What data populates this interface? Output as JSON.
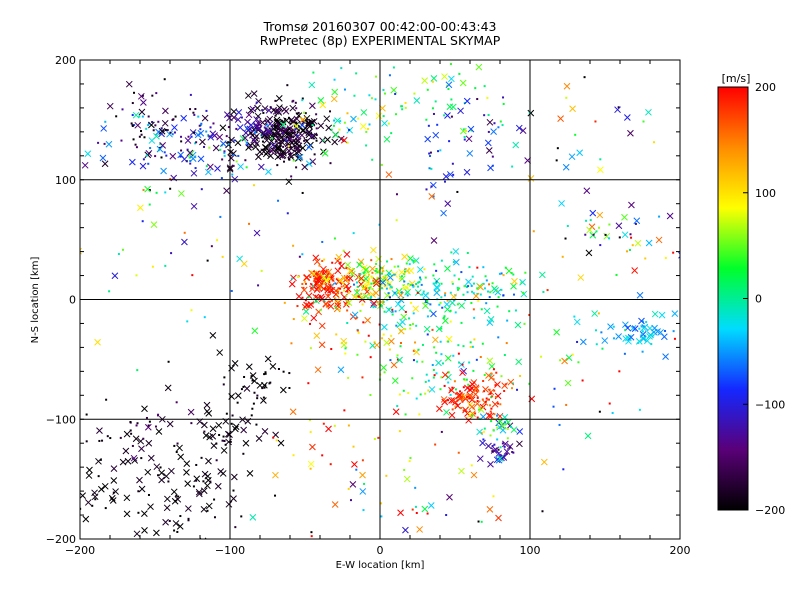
{
  "chart_data": {
    "type": "scatter",
    "title": "Tromsø 20160307 00:42:00-00:43:43",
    "subtitle": "RwPretec (8p) EXPERIMENTAL SKYMAP",
    "xlabel": "E-W location [km]",
    "ylabel": "N-S location [km]",
    "xlim": [
      -200,
      200
    ],
    "ylim": [
      -200,
      200
    ],
    "xticks": [
      -200,
      -100,
      0,
      100,
      200
    ],
    "yticks": [
      -200,
      -100,
      0,
      100,
      200
    ],
    "xtick_labels": [
      "−200",
      "−100",
      "0",
      "100",
      "200"
    ],
    "ytick_labels": [
      "−200",
      "−100",
      "0",
      "100",
      "200"
    ],
    "grid": true,
    "marker_types": [
      "x",
      "dot"
    ],
    "colorbar": {
      "label": "[m/s]",
      "range": [
        -200,
        200
      ],
      "ticks": [
        200,
        100,
        0,
        -100,
        -200
      ],
      "tick_labels": [
        "200",
        "100",
        "0",
        "−100",
        "−200"
      ],
      "colormap": [
        "#000000",
        "#5a0078",
        "#1428ff",
        "#00dcff",
        "#00ff2a",
        "#ffff00",
        "#ff8c00",
        "#ff0000"
      ]
    },
    "clusters": [
      {
        "x": -65,
        "y": 138,
        "sx": 14,
        "sy": 13,
        "v": -185,
        "sv": 20,
        "n": 260,
        "xf": 0.7
      },
      {
        "x": -120,
        "y": 130,
        "sx": 28,
        "sy": 18,
        "v": -90,
        "sv": 60,
        "n": 150,
        "xf": 0.4
      },
      {
        "x": -85,
        "y": 145,
        "sx": 8,
        "sy": 6,
        "v": -120,
        "sv": 15,
        "n": 25,
        "xf": 0.8
      },
      {
        "x": -150,
        "y": 150,
        "sx": 15,
        "sy": 15,
        "v": -180,
        "sv": 30,
        "n": 40,
        "xf": 0.5
      },
      {
        "x": -30,
        "y": 150,
        "sx": 25,
        "sy": 20,
        "v": 10,
        "sv": 80,
        "n": 60,
        "xf": 0.3
      },
      {
        "x": 35,
        "y": 165,
        "sx": 25,
        "sy": 20,
        "v": 30,
        "sv": 40,
        "n": 50,
        "xf": 0.3
      },
      {
        "x": 70,
        "y": 140,
        "sx": 20,
        "sy": 15,
        "v": -110,
        "sv": 40,
        "n": 20,
        "xf": 0.5
      },
      {
        "x": 40,
        "y": 110,
        "sx": 10,
        "sy": 25,
        "v": -100,
        "sv": 40,
        "n": 30,
        "xf": 0.4
      },
      {
        "x": 140,
        "y": 140,
        "sx": 30,
        "sy": 25,
        "v": -60,
        "sv": 120,
        "n": 25,
        "xf": 0.6
      },
      {
        "x": -35,
        "y": 10,
        "sx": 12,
        "sy": 10,
        "v": 185,
        "sv": 20,
        "n": 140,
        "xf": 0.6
      },
      {
        "x": -10,
        "y": 15,
        "sx": 15,
        "sy": 10,
        "v": 90,
        "sv": 40,
        "n": 120,
        "xf": 0.4
      },
      {
        "x": 30,
        "y": 10,
        "sx": 30,
        "sy": 12,
        "v": -15,
        "sv": 35,
        "n": 170,
        "xf": 0.2
      },
      {
        "x": 75,
        "y": 10,
        "sx": 15,
        "sy": 10,
        "v": 60,
        "sv": 60,
        "n": 30,
        "xf": 0.2
      },
      {
        "x": 0,
        "y": -30,
        "sx": 30,
        "sy": 25,
        "v": 120,
        "sv": 80,
        "n": 80,
        "xf": 0.3
      },
      {
        "x": 40,
        "y": -45,
        "sx": 25,
        "sy": 25,
        "v": 20,
        "sv": 50,
        "n": 100,
        "xf": 0.3
      },
      {
        "x": 65,
        "y": -80,
        "sx": 12,
        "sy": 10,
        "v": 185,
        "sv": 25,
        "n": 100,
        "xf": 0.5
      },
      {
        "x": 80,
        "y": -125,
        "sx": 6,
        "sy": 8,
        "v": -120,
        "sv": 30,
        "n": 30,
        "xf": 0.8
      },
      {
        "x": 75,
        "y": -105,
        "sx": 8,
        "sy": 8,
        "v": 30,
        "sv": 40,
        "n": 30,
        "xf": 0.4
      },
      {
        "x": 160,
        "y": 55,
        "sx": 25,
        "sy": 15,
        "v": 0,
        "sv": 120,
        "n": 45,
        "xf": 0.4
      },
      {
        "x": 175,
        "y": -25,
        "sx": 18,
        "sy": 10,
        "v": -40,
        "sv": 20,
        "n": 55,
        "xf": 0.6
      },
      {
        "x": 120,
        "y": -60,
        "sx": 50,
        "sy": 35,
        "v": 60,
        "sv": 120,
        "n": 45,
        "xf": 0.3
      },
      {
        "x": -100,
        "y": -115,
        "sx": 15,
        "sy": 30,
        "v": -195,
        "sv": 10,
        "n": 70,
        "xf": 0.6
      },
      {
        "x": -150,
        "y": -160,
        "sx": 30,
        "sy": 30,
        "v": -195,
        "sv": 10,
        "n": 110,
        "xf": 0.7
      },
      {
        "x": -160,
        "y": -110,
        "sx": 20,
        "sy": 15,
        "v": -180,
        "sv": 30,
        "n": 35,
        "xf": 0.3
      },
      {
        "x": -75,
        "y": -70,
        "sx": 12,
        "sy": 12,
        "v": -195,
        "sv": 10,
        "n": 30,
        "xf": 0.3
      },
      {
        "x": 30,
        "y": -170,
        "sx": 40,
        "sy": 20,
        "v": 40,
        "sv": 120,
        "n": 40,
        "xf": 0.3
      },
      {
        "x": -30,
        "y": -120,
        "sx": 25,
        "sy": 20,
        "v": 140,
        "sv": 60,
        "n": 25,
        "xf": 0.3
      },
      {
        "x": -140,
        "y": 60,
        "sx": 40,
        "sy": 40,
        "v": 0,
        "sv": 120,
        "n": 40,
        "xf": 0.3
      },
      {
        "x": 0,
        "y": 60,
        "sx": 100,
        "sy": 40,
        "v": -50,
        "sv": 120,
        "n": 45,
        "xf": 0.4
      }
    ]
  }
}
